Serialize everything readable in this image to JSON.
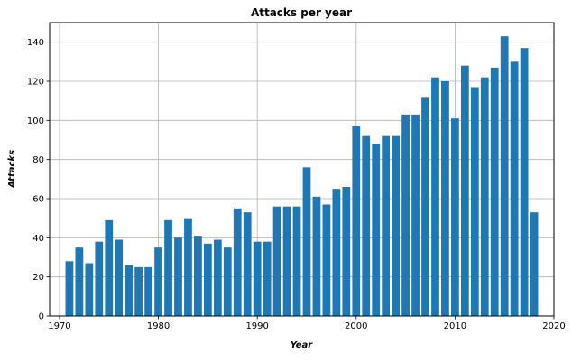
{
  "chart_data": {
    "type": "bar",
    "title": "Attacks per year",
    "xlabel": "Year",
    "ylabel": "Attacks",
    "xlim": [
      1969,
      2020
    ],
    "ylim": [
      0,
      150
    ],
    "xticks": [
      1970,
      1980,
      1990,
      2000,
      2010,
      2020
    ],
    "yticks": [
      0,
      20,
      40,
      60,
      80,
      100,
      120,
      140
    ],
    "grid": true,
    "bar_color": "#1f77b4",
    "x": [
      1971,
      1972,
      1973,
      1974,
      1975,
      1976,
      1977,
      1978,
      1979,
      1980,
      1981,
      1982,
      1983,
      1984,
      1985,
      1986,
      1987,
      1988,
      1989,
      1990,
      1991,
      1992,
      1993,
      1994,
      1995,
      1996,
      1997,
      1998,
      1999,
      2000,
      2001,
      2002,
      2003,
      2004,
      2005,
      2006,
      2007,
      2008,
      2009,
      2010,
      2011,
      2012,
      2013,
      2014,
      2015,
      2016,
      2017,
      2018
    ],
    "values": [
      28,
      35,
      27,
      38,
      49,
      39,
      26,
      25,
      25,
      35,
      49,
      40,
      50,
      41,
      37,
      39,
      35,
      55,
      53,
      38,
      38,
      56,
      56,
      56,
      76,
      61,
      57,
      65,
      66,
      97,
      92,
      88,
      92,
      92,
      103,
      103,
      112,
      122,
      120,
      101,
      128,
      117,
      122,
      127,
      143,
      130,
      137,
      53
    ]
  }
}
